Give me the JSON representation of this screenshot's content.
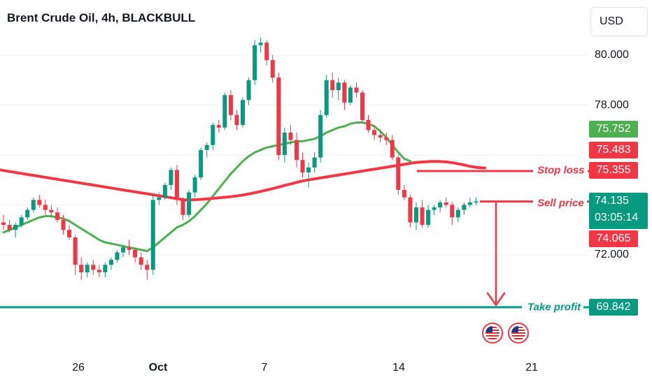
{
  "header": {
    "title": "Brent Crude Oil, 4h, BLACKBULL",
    "currency_button": "USD"
  },
  "price_axis": {
    "ticks": [
      "80.000",
      "78.000",
      "72.000"
    ],
    "tags": {
      "green_ma": "75.752",
      "red_ma": "75.483",
      "stop_loss": "75.355",
      "current_price": "74.135",
      "countdown": "03:05:14",
      "bid": "74.065",
      "take_profit": "69.842"
    }
  },
  "time_axis": {
    "ticks": [
      "26",
      "Oct",
      "7",
      "14",
      "21"
    ]
  },
  "annotations": {
    "stop_loss_label": "Stop loss",
    "sell_price_label": "Sell price",
    "take_profit_label": "Take profit"
  },
  "events": [
    "us-flag-icon",
    "us-flag-icon"
  ],
  "colors": {
    "up": "#089981",
    "down": "#f23645",
    "ma_long": "#f23645",
    "ma_short": "#4caf50",
    "take_profit_line": "#089981",
    "ma_short_tag": "#4caf50"
  },
  "chart_data": {
    "type": "candlestick",
    "symbol": "Brent Crude Oil",
    "interval": "4h",
    "y_ticks": [
      72,
      74,
      76,
      78,
      80
    ],
    "y_tick_labels_shown": [
      "80.000",
      "78.000",
      "72.000"
    ],
    "x_tick_labels": [
      "26",
      "Oct",
      "7",
      "14",
      "21"
    ],
    "candles": [
      [
        73.3,
        73.6,
        73.0,
        73.2
      ],
      [
        73.2,
        73.4,
        72.9,
        73.0
      ],
      [
        73.0,
        73.3,
        72.7,
        73.2
      ],
      [
        73.2,
        73.6,
        73.1,
        73.5
      ],
      [
        73.5,
        73.9,
        73.4,
        73.8
      ],
      [
        73.8,
        74.3,
        73.7,
        74.2
      ],
      [
        74.2,
        74.4,
        73.9,
        74.0
      ],
      [
        74.0,
        74.2,
        73.6,
        73.8
      ],
      [
        73.8,
        74.0,
        73.5,
        73.7
      ],
      [
        73.7,
        73.9,
        73.3,
        73.4
      ],
      [
        73.4,
        73.6,
        72.8,
        73.0
      ],
      [
        73.0,
        73.2,
        72.6,
        72.7
      ],
      [
        72.7,
        72.8,
        71.2,
        71.6
      ],
      [
        71.6,
        71.9,
        71.0,
        71.3
      ],
      [
        71.3,
        71.7,
        71.1,
        71.6
      ],
      [
        71.6,
        71.8,
        71.2,
        71.4
      ],
      [
        71.4,
        71.6,
        71.1,
        71.3
      ],
      [
        71.3,
        71.7,
        71.1,
        71.6
      ],
      [
        71.6,
        71.9,
        71.4,
        71.8
      ],
      [
        71.8,
        72.2,
        71.7,
        72.1
      ],
      [
        72.1,
        72.4,
        71.9,
        72.3
      ],
      [
        72.3,
        72.6,
        72.0,
        72.2
      ],
      [
        72.2,
        72.3,
        71.7,
        71.9
      ],
      [
        71.9,
        72.1,
        71.4,
        71.6
      ],
      [
        71.6,
        71.8,
        71.0,
        71.4
      ],
      [
        71.4,
        74.4,
        71.2,
        74.2
      ],
      [
        74.2,
        74.5,
        74.0,
        74.3
      ],
      [
        74.3,
        74.9,
        74.2,
        74.8
      ],
      [
        74.8,
        75.5,
        74.6,
        75.4
      ],
      [
        75.4,
        75.6,
        74.0,
        74.2
      ],
      [
        74.2,
        74.3,
        73.4,
        73.6
      ],
      [
        73.6,
        74.6,
        73.5,
        74.5
      ],
      [
        74.5,
        75.2,
        74.3,
        75.1
      ],
      [
        75.1,
        76.3,
        75.0,
        76.2
      ],
      [
        76.2,
        76.5,
        75.9,
        76.4
      ],
      [
        76.4,
        77.3,
        76.2,
        77.2
      ],
      [
        77.2,
        77.4,
        76.9,
        77.1
      ],
      [
        77.1,
        78.5,
        77.0,
        78.4
      ],
      [
        78.4,
        78.6,
        77.4,
        77.6
      ],
      [
        77.6,
        77.8,
        77.0,
        77.2
      ],
      [
        77.2,
        78.3,
        77.1,
        78.2
      ],
      [
        78.2,
        79.1,
        78.0,
        79.0
      ],
      [
        79.0,
        80.6,
        78.8,
        80.4
      ],
      [
        80.4,
        80.7,
        80.1,
        80.5
      ],
      [
        80.5,
        80.6,
        79.6,
        79.8
      ],
      [
        79.8,
        80.0,
        78.9,
        79.1
      ],
      [
        79.1,
        79.3,
        75.8,
        76.0
      ],
      [
        76.0,
        77.1,
        75.7,
        76.9
      ],
      [
        76.9,
        77.2,
        76.4,
        76.6
      ],
      [
        76.6,
        76.9,
        75.5,
        75.8
      ],
      [
        75.8,
        76.1,
        75.1,
        75.3
      ],
      [
        75.3,
        75.7,
        74.7,
        75.5
      ],
      [
        75.5,
        76.1,
        75.3,
        75.9
      ],
      [
        75.9,
        77.8,
        75.7,
        77.6
      ],
      [
        77.6,
        79.2,
        77.5,
        79.0
      ],
      [
        79.0,
        79.3,
        78.3,
        78.6
      ],
      [
        78.6,
        79.1,
        78.2,
        78.9
      ],
      [
        78.9,
        79.0,
        77.8,
        78.1
      ],
      [
        78.1,
        78.8,
        78.0,
        78.7
      ],
      [
        78.7,
        78.9,
        78.3,
        78.5
      ],
      [
        78.5,
        78.6,
        77.3,
        77.4
      ],
      [
        77.4,
        77.6,
        76.9,
        77.0
      ],
      [
        77.0,
        77.2,
        76.6,
        76.8
      ],
      [
        76.8,
        77.0,
        76.5,
        76.7
      ],
      [
        76.7,
        76.9,
        76.4,
        76.6
      ],
      [
        76.6,
        76.8,
        75.8,
        75.9
      ],
      [
        75.9,
        76.0,
        74.4,
        74.6
      ],
      [
        74.6,
        74.8,
        74.2,
        74.3
      ],
      [
        74.3,
        74.4,
        73.1,
        73.3
      ],
      [
        73.3,
        74.1,
        73.0,
        73.9
      ],
      [
        73.9,
        74.2,
        73.1,
        73.2
      ],
      [
        73.2,
        74.0,
        73.1,
        73.8
      ],
      [
        73.8,
        74.0,
        73.6,
        73.9
      ],
      [
        73.9,
        74.2,
        73.7,
        74.1
      ],
      [
        74.1,
        74.3,
        73.9,
        74.0
      ],
      [
        74.0,
        74.1,
        73.2,
        73.5
      ],
      [
        73.5,
        73.9,
        73.3,
        73.8
      ],
      [
        73.8,
        74.1,
        73.6,
        74.0
      ],
      [
        74.0,
        74.3,
        73.9,
        74.1
      ],
      [
        74.1,
        74.3,
        74.0,
        74.14
      ]
    ],
    "series": [
      {
        "name": "",
        "color": "#4caf50",
        "values": [
          72.9,
          73.0,
          73.1,
          73.2,
          73.3,
          73.4,
          73.5,
          73.55,
          73.55,
          73.5,
          73.45,
          73.35,
          73.2,
          73.05,
          72.9,
          72.75,
          72.6,
          72.5,
          72.45,
          72.4,
          72.35,
          72.3,
          72.25,
          72.2,
          72.15,
          72.3,
          72.5,
          72.7,
          72.9,
          73.1,
          73.2,
          73.35,
          73.55,
          73.8,
          74.05,
          74.35,
          74.65,
          74.95,
          75.25,
          75.5,
          75.75,
          75.95,
          76.1,
          76.2,
          76.3,
          76.35,
          76.4,
          76.45,
          76.5,
          76.55,
          76.55,
          76.6,
          76.65,
          76.75,
          76.9,
          77.0,
          77.1,
          77.15,
          77.25,
          77.3,
          77.3,
          77.25,
          77.15,
          76.95,
          76.7,
          76.4,
          76.1,
          75.85,
          75.75
        ]
      },
      {
        "name": "",
        "color": "#f23645",
        "values": [
          75.4,
          75.35,
          75.3,
          75.25,
          75.2,
          75.15,
          75.1,
          75.05,
          75.0,
          74.95,
          74.9,
          74.85,
          74.8,
          74.75,
          74.7,
          74.65,
          74.6,
          74.55,
          74.5,
          74.45,
          74.4,
          74.35,
          74.3,
          74.25,
          74.2,
          74.2,
          74.22,
          74.24,
          74.27,
          74.3,
          74.33,
          74.37,
          74.42,
          74.48,
          74.55,
          74.62,
          74.7,
          74.78,
          74.86,
          74.94,
          75.0,
          75.05,
          75.1,
          75.15,
          75.2,
          75.25,
          75.3,
          75.35,
          75.4,
          75.45,
          75.5,
          75.55,
          75.6,
          75.65,
          75.7,
          75.72,
          75.74,
          75.74,
          75.72,
          75.68,
          75.62,
          75.55,
          75.5,
          75.48
        ]
      }
    ],
    "levels": [
      {
        "label": "Stop loss",
        "value": 75.355
      },
      {
        "label": "Sell price",
        "value": 74.135
      },
      {
        "label": "Take profit",
        "value": 69.842
      }
    ]
  }
}
